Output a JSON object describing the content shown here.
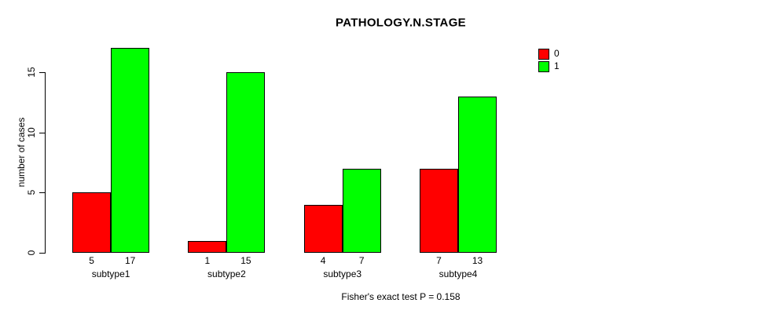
{
  "figure": {
    "background_color": "#ffffff",
    "text_color": "#000000"
  },
  "chart_data": {
    "type": "bar",
    "title": "PATHOLOGY.N.STAGE",
    "xlabel": "",
    "ylabel": "number of cases",
    "caption": "Fisher's exact test P = 0.158",
    "categories": [
      "subtype1",
      "subtype2",
      "subtype3",
      "subtype4"
    ],
    "series": [
      {
        "name": "0",
        "color": "#ff0000",
        "values": [
          5,
          1,
          4,
          7
        ]
      },
      {
        "name": "1",
        "color": "#00ff00",
        "values": [
          17,
          15,
          7,
          13
        ]
      }
    ],
    "bar_value_labels": [
      [
        "5",
        "17"
      ],
      [
        "1",
        "15"
      ],
      [
        "4",
        "7"
      ],
      [
        "7",
        "13"
      ]
    ],
    "yticks": [
      0,
      5,
      10,
      15
    ],
    "ylim": [
      0,
      17
    ],
    "grid": false,
    "legend_position": "top-right",
    "legend_entries": [
      {
        "label": "0",
        "color": "#ff0000"
      },
      {
        "label": "1",
        "color": "#00ff00"
      }
    ]
  }
}
